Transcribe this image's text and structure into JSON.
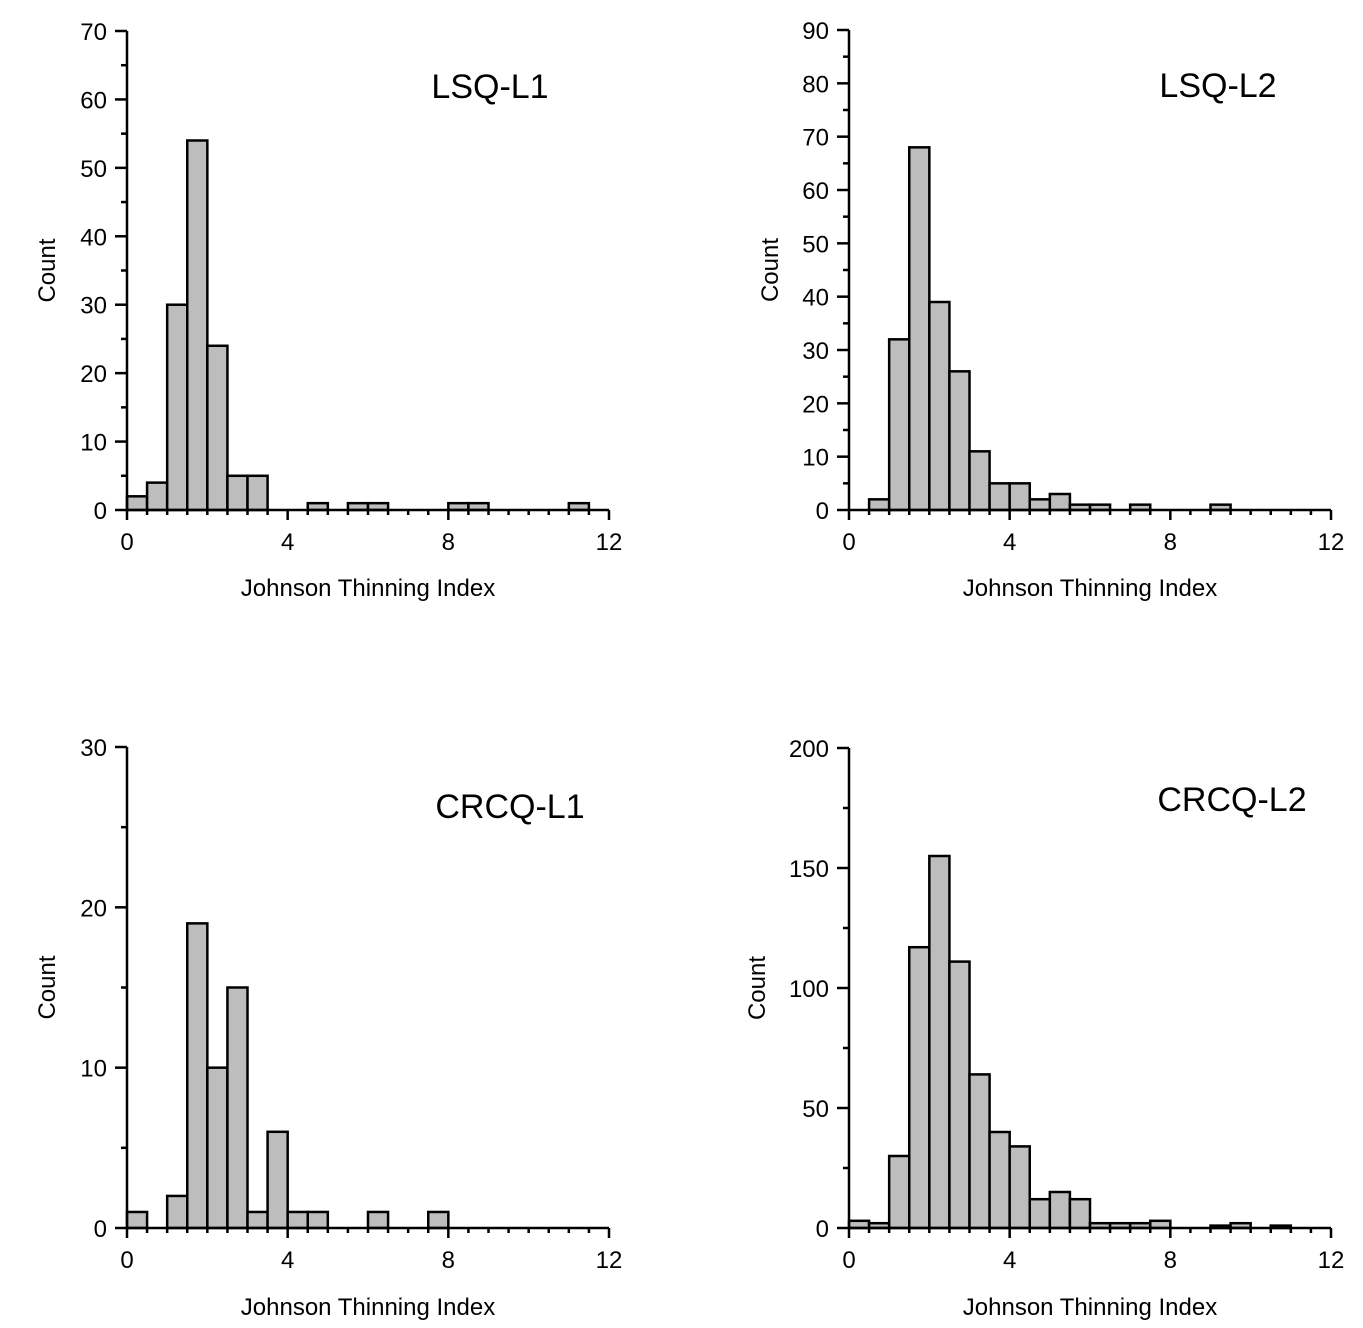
{
  "figure": {
    "bar_fill": "#bdbdbd",
    "bar_stroke": "#000000"
  },
  "chart_data": [
    {
      "type": "bar",
      "panel": "top-left",
      "title": "LSQ-L1",
      "xlabel": "Johnson Thinning Index",
      "ylabel": "Count",
      "xlim": [
        0,
        12
      ],
      "ylim": [
        0,
        70
      ],
      "xticks": [
        0,
        4,
        8,
        12
      ],
      "yticks": [
        0,
        10,
        20,
        30,
        40,
        50,
        60,
        70
      ],
      "bin_width": 0.5,
      "bins": [
        {
          "x0": 0.0,
          "count": 2
        },
        {
          "x0": 0.5,
          "count": 4
        },
        {
          "x0": 1.0,
          "count": 30
        },
        {
          "x0": 1.5,
          "count": 54
        },
        {
          "x0": 2.0,
          "count": 24
        },
        {
          "x0": 2.5,
          "count": 5
        },
        {
          "x0": 3.0,
          "count": 5
        },
        {
          "x0": 4.5,
          "count": 1
        },
        {
          "x0": 5.5,
          "count": 1
        },
        {
          "x0": 6.0,
          "count": 1
        },
        {
          "x0": 8.0,
          "count": 1
        },
        {
          "x0": 8.5,
          "count": 1
        },
        {
          "x0": 11.0,
          "count": 1
        }
      ]
    },
    {
      "type": "bar",
      "panel": "top-right",
      "title": "LSQ-L2",
      "xlabel": "Johnson Thinning Index",
      "ylabel": "Count",
      "xlim": [
        0,
        12
      ],
      "ylim": [
        0,
        90
      ],
      "xticks": [
        0,
        4,
        8,
        12
      ],
      "yticks": [
        0,
        10,
        20,
        30,
        40,
        50,
        60,
        70,
        80,
        90
      ],
      "bin_width": 0.5,
      "bins": [
        {
          "x0": 0.5,
          "count": 2
        },
        {
          "x0": 1.0,
          "count": 32
        },
        {
          "x0": 1.5,
          "count": 68
        },
        {
          "x0": 2.0,
          "count": 39
        },
        {
          "x0": 2.5,
          "count": 26
        },
        {
          "x0": 3.0,
          "count": 11
        },
        {
          "x0": 3.5,
          "count": 5
        },
        {
          "x0": 4.0,
          "count": 5
        },
        {
          "x0": 4.5,
          "count": 2
        },
        {
          "x0": 5.0,
          "count": 3
        },
        {
          "x0": 5.5,
          "count": 1
        },
        {
          "x0": 6.0,
          "count": 1
        },
        {
          "x0": 7.0,
          "count": 1
        },
        {
          "x0": 9.0,
          "count": 1
        }
      ]
    },
    {
      "type": "bar",
      "panel": "bottom-left",
      "title": "CRCQ-L1",
      "xlabel": "Johnson Thinning Index",
      "ylabel": "Count",
      "xlim": [
        0,
        12
      ],
      "ylim": [
        0,
        30
      ],
      "xticks": [
        0,
        4,
        8,
        12
      ],
      "yticks": [
        0,
        10,
        20,
        30
      ],
      "bin_width": 0.5,
      "bins": [
        {
          "x0": 0.0,
          "count": 1
        },
        {
          "x0": 1.0,
          "count": 2
        },
        {
          "x0": 1.5,
          "count": 19
        },
        {
          "x0": 2.0,
          "count": 10
        },
        {
          "x0": 2.5,
          "count": 15
        },
        {
          "x0": 3.0,
          "count": 1
        },
        {
          "x0": 3.5,
          "count": 6
        },
        {
          "x0": 4.0,
          "count": 1
        },
        {
          "x0": 4.5,
          "count": 1
        },
        {
          "x0": 6.0,
          "count": 1
        },
        {
          "x0": 7.5,
          "count": 1
        }
      ]
    },
    {
      "type": "bar",
      "panel": "bottom-right",
      "title": "CRCQ-L2",
      "xlabel": "Johnson Thinning Index",
      "ylabel": "Count",
      "xlim": [
        0,
        12
      ],
      "ylim": [
        0,
        200
      ],
      "xticks": [
        0,
        4,
        8,
        12
      ],
      "yticks": [
        0,
        50,
        100,
        150,
        200
      ],
      "bin_width": 0.5,
      "bins": [
        {
          "x0": 0.0,
          "count": 3
        },
        {
          "x0": 0.5,
          "count": 2
        },
        {
          "x0": 1.0,
          "count": 30
        },
        {
          "x0": 1.5,
          "count": 117
        },
        {
          "x0": 2.0,
          "count": 155
        },
        {
          "x0": 2.5,
          "count": 111
        },
        {
          "x0": 3.0,
          "count": 64
        },
        {
          "x0": 3.5,
          "count": 40
        },
        {
          "x0": 4.0,
          "count": 34
        },
        {
          "x0": 4.5,
          "count": 12
        },
        {
          "x0": 5.0,
          "count": 15
        },
        {
          "x0": 5.5,
          "count": 12
        },
        {
          "x0": 6.0,
          "count": 2
        },
        {
          "x0": 6.5,
          "count": 2
        },
        {
          "x0": 7.0,
          "count": 2
        },
        {
          "x0": 7.5,
          "count": 3
        },
        {
          "x0": 9.0,
          "count": 1
        },
        {
          "x0": 9.5,
          "count": 2
        },
        {
          "x0": 10.5,
          "count": 1
        }
      ]
    }
  ]
}
